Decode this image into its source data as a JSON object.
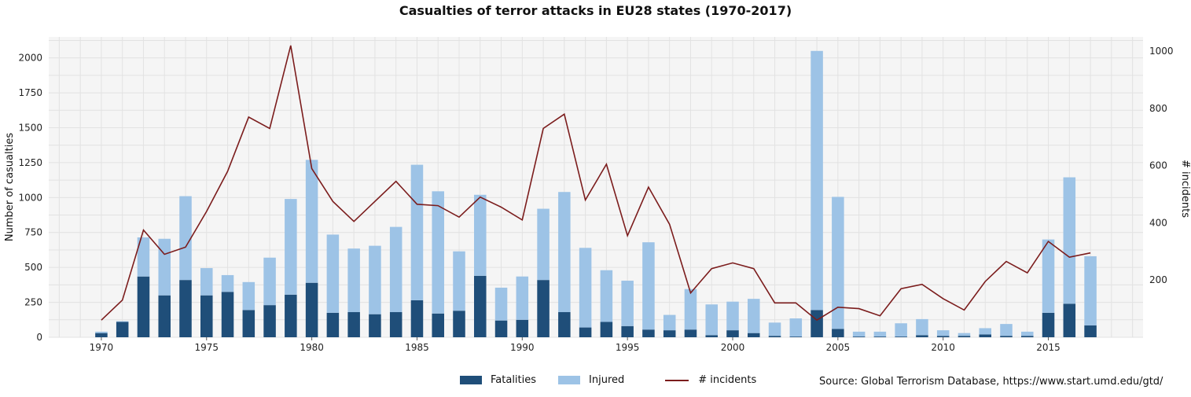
{
  "chart_data": {
    "type": "bar",
    "stacked": true,
    "title": "Casualties of terror attacks in EU28 states (1970-2017)",
    "ylabel": "Number of casualties",
    "y2label": "# incidents",
    "ylim": [
      0,
      2150
    ],
    "y2lim": [
      0,
      1050
    ],
    "xlim": [
      1967.5,
      2019.5
    ],
    "yticks": [
      0,
      250,
      500,
      750,
      1000,
      1250,
      1500,
      1750,
      2000
    ],
    "y2ticks": [
      200,
      400,
      600,
      800,
      1000
    ],
    "xticks": [
      1970,
      1975,
      1980,
      1985,
      1990,
      1995,
      2000,
      2005,
      2010,
      2015
    ],
    "years": [
      1970,
      1971,
      1972,
      1973,
      1974,
      1975,
      1976,
      1977,
      1978,
      1979,
      1980,
      1981,
      1982,
      1983,
      1984,
      1985,
      1986,
      1987,
      1988,
      1989,
      1990,
      1991,
      1992,
      1993,
      1994,
      1995,
      1996,
      1997,
      1998,
      1999,
      2000,
      2001,
      2002,
      2003,
      2004,
      2005,
      2006,
      2007,
      2008,
      2009,
      2010,
      2011,
      2012,
      2013,
      2014,
      2015,
      2016,
      2017
    ],
    "series": [
      {
        "name": "Fatalities",
        "color": "#1f4e79",
        "values": [
          30,
          110,
          435,
          300,
          410,
          300,
          325,
          195,
          230,
          305,
          390,
          175,
          180,
          165,
          180,
          265,
          170,
          190,
          440,
          120,
          125,
          410,
          180,
          70,
          110,
          80,
          55,
          50,
          55,
          15,
          50,
          30,
          10,
          5,
          195,
          60,
          5,
          5,
          5,
          15,
          10,
          10,
          20,
          10,
          10,
          175,
          240,
          85
        ]
      },
      {
        "name": "Injured",
        "color": "#9dc3e6",
        "values": [
          10,
          5,
          280,
          405,
          600,
          195,
          120,
          200,
          340,
          685,
          880,
          560,
          455,
          490,
          610,
          970,
          875,
          425,
          580,
          235,
          310,
          510,
          860,
          570,
          370,
          325,
          625,
          110,
          290,
          220,
          205,
          245,
          95,
          130,
          1855,
          945,
          35,
          35,
          95,
          115,
          40,
          20,
          45,
          85,
          30,
          525,
          905,
          495
        ]
      },
      {
        "name": "# incidents",
        "color": "#7b1c1c",
        "type": "line",
        "axis": "right",
        "values": [
          60,
          130,
          375,
          290,
          315,
          440,
          580,
          770,
          730,
          1020,
          590,
          475,
          405,
          475,
          545,
          465,
          460,
          420,
          490,
          455,
          410,
          730,
          780,
          480,
          605,
          355,
          525,
          395,
          155,
          240,
          260,
          240,
          120,
          120,
          60,
          105,
          100,
          75,
          170,
          185,
          135,
          95,
          195,
          265,
          225,
          335,
          280,
          295
        ]
      }
    ],
    "legend_placement": "bottom-center"
  },
  "legend": {
    "fatalities": "Fatalities",
    "injured": "Injured",
    "incidents": "# incidents"
  },
  "source_note": "Source: Global Terrorism Database, https://www.start.umd.edu/gtd/"
}
